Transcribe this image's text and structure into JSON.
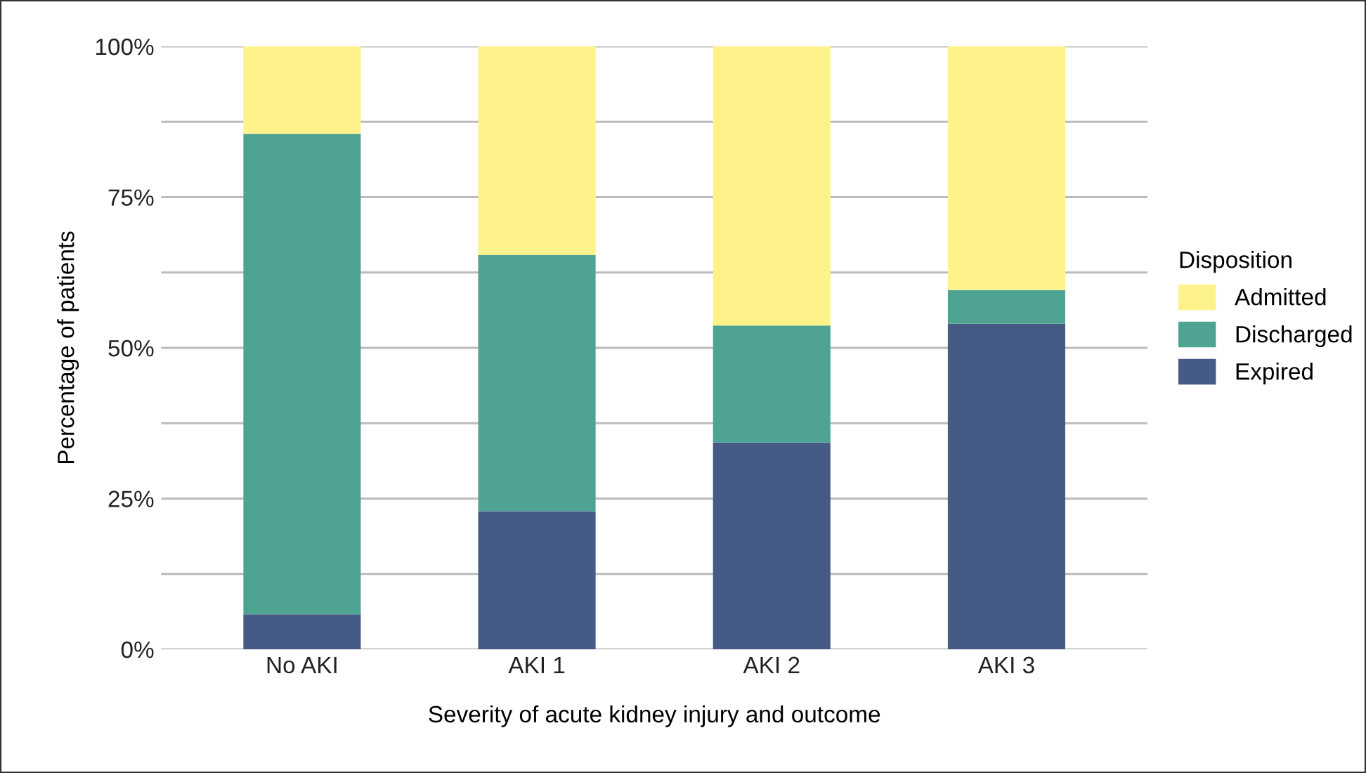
{
  "chart_data": {
    "type": "bar",
    "stacked": true,
    "xlabel": "Severity of acute kidney injury and outcome",
    "ylabel": "Percentage of patients",
    "legend_title": "Disposition",
    "categories": [
      "No AKI",
      "AKI 1",
      "AKI 2",
      "AKI 3"
    ],
    "series": [
      {
        "name": "Expired",
        "color": "#465a86",
        "values": [
          5.8,
          22.9,
          34.3,
          54.0
        ]
      },
      {
        "name": "Discharged",
        "color": "#4fa393",
        "values": [
          79.7,
          42.5,
          19.4,
          5.6
        ]
      },
      {
        "name": "Admitted",
        "color": "#fdf38a",
        "values": [
          14.5,
          34.6,
          46.3,
          40.4
        ]
      }
    ],
    "ylim": [
      0,
      100
    ],
    "yticks": [
      {
        "value": 0,
        "label": "0%"
      },
      {
        "value": 12.5,
        "label": null
      },
      {
        "value": 25,
        "label": "25%"
      },
      {
        "value": 37.5,
        "label": null
      },
      {
        "value": 50,
        "label": "50%"
      },
      {
        "value": 62.5,
        "label": null
      },
      {
        "value": 75,
        "label": "75%"
      },
      {
        "value": 87.5,
        "label": null
      },
      {
        "value": 100,
        "label": "100%"
      }
    ],
    "grid": "y",
    "legend": "right"
  }
}
